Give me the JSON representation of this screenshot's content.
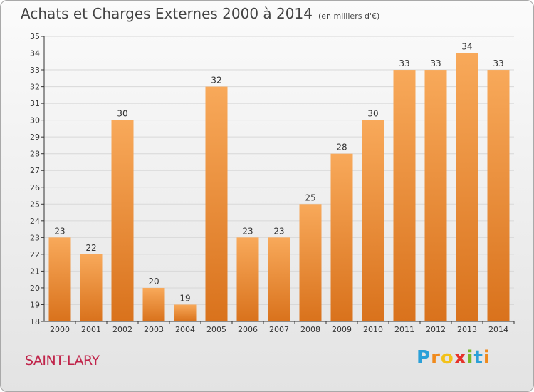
{
  "header": {
    "title": "Achats et Charges Externes 2000 à 2014",
    "subtitle": "(en milliers d'€)"
  },
  "footer": {
    "town": "SAINT-LARY",
    "logo": "Proxiti"
  },
  "colors": {
    "bar_light": "#f8a95a",
    "bar_dark": "#d9721c",
    "grid": "#d8d8d8",
    "axis": "#333333",
    "town": "#c0244a"
  },
  "chart_data": {
    "type": "bar",
    "title": "Achats et Charges Externes 2000 à 2014",
    "subtitle": "(en milliers d'€)",
    "categories": [
      "2000",
      "2001",
      "2002",
      "2003",
      "2004",
      "2005",
      "2006",
      "2007",
      "2008",
      "2009",
      "2010",
      "2011",
      "2012",
      "2013",
      "2014"
    ],
    "values": [
      23,
      22,
      30,
      20,
      19,
      32,
      23,
      23,
      25,
      28,
      30,
      33,
      33,
      34,
      33
    ],
    "ylim": [
      18,
      35
    ],
    "yticks": [
      18,
      19,
      20,
      21,
      22,
      23,
      24,
      25,
      26,
      27,
      28,
      29,
      30,
      31,
      32,
      33,
      34,
      35
    ],
    "grid": true,
    "data_labels": true
  }
}
